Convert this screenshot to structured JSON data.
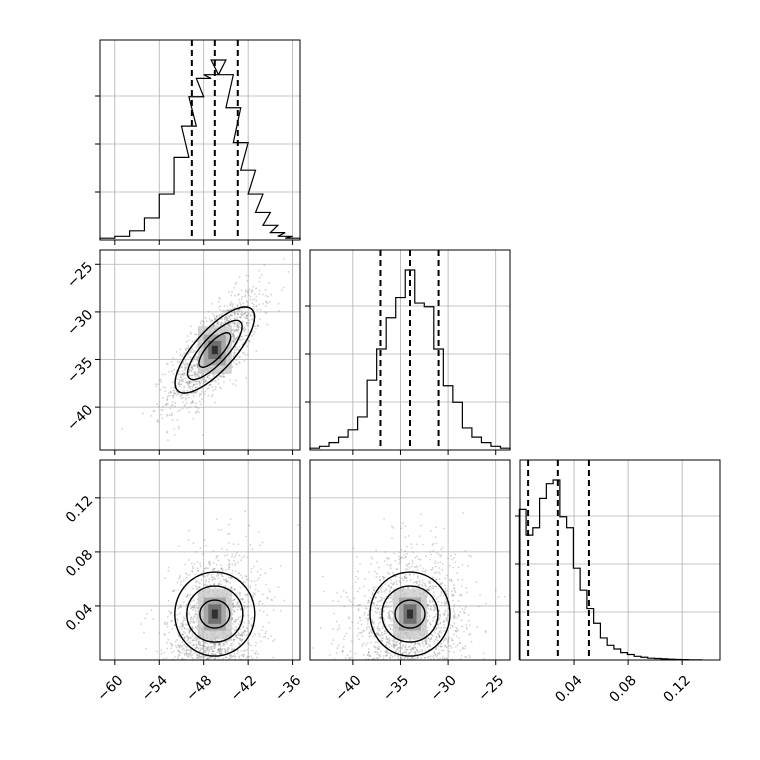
{
  "chart_data": {
    "type": "corner",
    "parameters": [
      {
        "range": [
          -62,
          -35
        ],
        "ticks": [
          -60,
          -54,
          -48,
          -42,
          -36
        ]
      },
      {
        "range": [
          -44.5,
          -23.5
        ],
        "ticks": [
          -40,
          -35,
          -30,
          -25
        ]
      },
      {
        "range": [
          0.0,
          0.148
        ],
        "ticks": [
          0.04,
          0.08,
          0.12
        ]
      }
    ],
    "y_tick_values": {
      "row1": [
        -25,
        -30,
        -35,
        -40
      ],
      "row2": [
        0.12,
        0.08,
        0.04
      ]
    },
    "histograms": [
      {
        "quantiles": [
          -49.6,
          -46.5,
          -43.4
        ],
        "x": [
          -61,
          -59,
          -57,
          -55,
          -53,
          -51,
          -50,
          -49,
          -48,
          -47,
          -46,
          -45,
          -44,
          -43,
          -42,
          -41,
          -40,
          -39,
          -38,
          -37,
          -36
        ],
        "counts": [
          0.01,
          0.02,
          0.05,
          0.12,
          0.25,
          0.45,
          0.62,
          0.78,
          0.88,
          0.9,
          0.98,
          0.9,
          0.72,
          0.53,
          0.38,
          0.25,
          0.15,
          0.08,
          0.04,
          0.02,
          0.01
        ]
      },
      {
        "quantiles": [
          -37.1,
          -34.0,
          -31.0
        ],
        "x": [
          -44,
          -43,
          -42,
          -41,
          -40,
          -39,
          -38,
          -37,
          -36,
          -35,
          -34,
          -33,
          -32,
          -31,
          -30,
          -29,
          -28,
          -27,
          -26,
          -25,
          -24
        ],
        "counts": [
          0.01,
          0.02,
          0.04,
          0.07,
          0.11,
          0.18,
          0.38,
          0.55,
          0.72,
          0.83,
          0.98,
          0.8,
          0.78,
          0.55,
          0.35,
          0.26,
          0.12,
          0.07,
          0.04,
          0.02,
          0.01
        ]
      },
      {
        "quantiles": [
          0.006,
          0.028,
          0.051
        ],
        "x": [
          0.002,
          0.007,
          0.012,
          0.017,
          0.022,
          0.027,
          0.032,
          0.037,
          0.042,
          0.047,
          0.052,
          0.057,
          0.062,
          0.067,
          0.072,
          0.077,
          0.082,
          0.087,
          0.092,
          0.097,
          0.102,
          0.107,
          0.112,
          0.117,
          0.122,
          0.127,
          0.132
        ],
        "counts": [
          0.82,
          0.68,
          0.72,
          0.88,
          0.96,
          0.98,
          0.78,
          0.72,
          0.5,
          0.38,
          0.28,
          0.2,
          0.12,
          0.08,
          0.06,
          0.04,
          0.03,
          0.02,
          0.015,
          0.01,
          0.008,
          0.006,
          0.004,
          0.003,
          0.002,
          0.001,
          0.001
        ]
      }
    ],
    "correlations": {
      "p1_p0": 0.75,
      "p2_p0": 0.15,
      "p2_p1": 0.12
    },
    "scatter_color": "#808080",
    "grid": true
  }
}
